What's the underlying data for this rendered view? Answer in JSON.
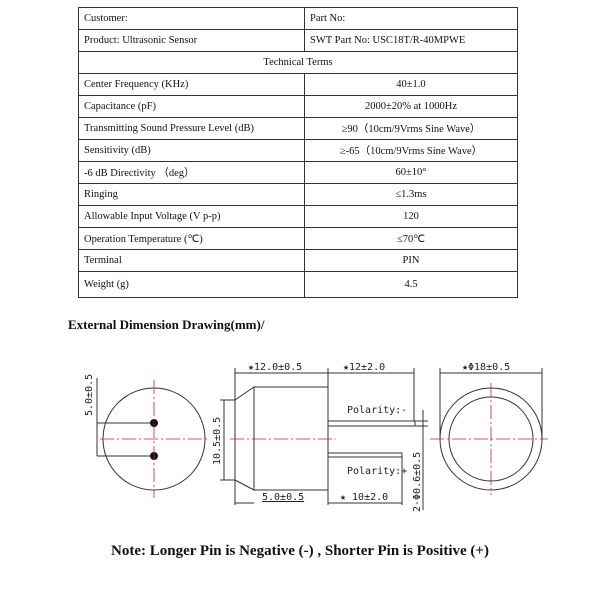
{
  "table": {
    "customer_label": "Customer:",
    "part_no_label": "Part No:",
    "product": "Product: Ultrasonic Sensor",
    "swt_part_no": "SWT Part No: USC18T/R-40MPWE",
    "section_title": "Technical Terms",
    "rows": [
      {
        "label": "Center Frequency (KHz)",
        "value": "40±1.0"
      },
      {
        "label": "Capacitance (pF)",
        "value": "2000±20% at 1000Hz"
      },
      {
        "label": "Transmitting Sound Pressure Level (dB)",
        "value": "≥90（10cm/9Vrms Sine Wave）"
      },
      {
        "label": "Sensitivity (dB)",
        "value": "≥-65（10cm/9Vrms Sine Wave）"
      },
      {
        "label": "-6 dB Directivity （deg）",
        "value": "60±10°"
      },
      {
        "label": "Ringing",
        "value": "≤1.3ms"
      },
      {
        "label": "Allowable Input Voltage (V p-p)",
        "value": "120"
      },
      {
        "label": "Operation Temperature (℃)",
        "value": "≤70℃"
      },
      {
        "label": "Terminal",
        "value": "PIN"
      },
      {
        "label": "Weight (g)",
        "value": "4.5"
      }
    ]
  },
  "drawing": {
    "heading": "External Dimension Drawing(mm)/",
    "dims": {
      "pin_spacing": "5.0±0.5",
      "body_length": "★12.0±0.5",
      "pin_long": "★12±2.0",
      "diameter": "★Φ18±0.5",
      "front_height": "10.5±0.5",
      "taper": "5.0±0.5",
      "pin_short": "★ 10±2.0",
      "pin_dia": "2-Φ0.6±0.5",
      "polarity_neg": "Polarity:-",
      "polarity_pos": "Polarity:+"
    },
    "centerline_color": "#d02020"
  },
  "note": "Note: Longer Pin is Negative (-) , Shorter Pin is Positive (+)"
}
